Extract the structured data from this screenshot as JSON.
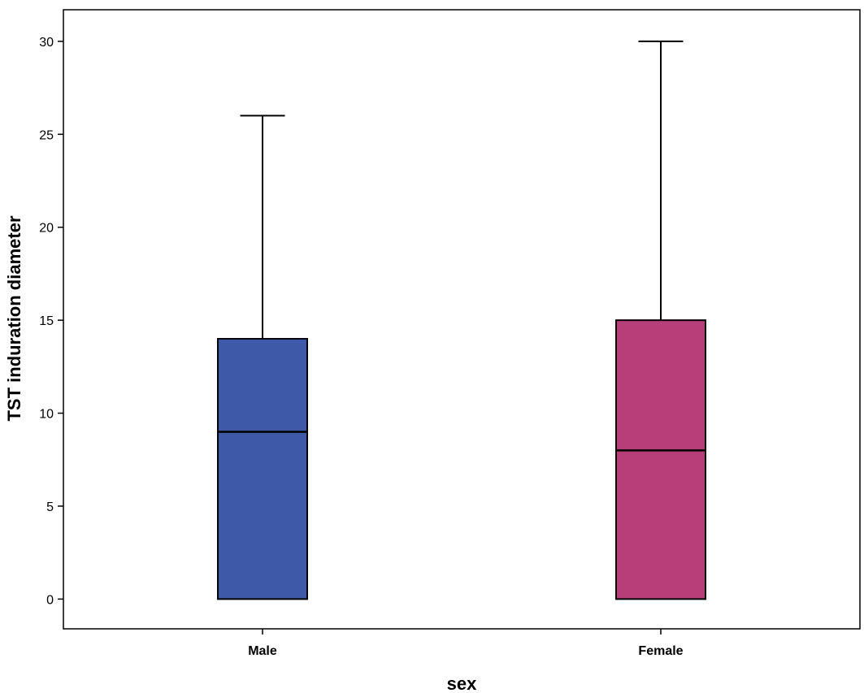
{
  "chart_data": {
    "type": "boxplot",
    "xlabel": "sex",
    "ylabel": "TST induration diameter",
    "ylim": [
      -1.6,
      31.7
    ],
    "yticks": [
      0,
      5,
      10,
      15,
      20,
      25,
      30
    ],
    "grid": false,
    "categories": [
      "Male",
      "Female"
    ],
    "boxes": [
      {
        "category": "Male",
        "min": 0,
        "q1": 0,
        "median": 9,
        "q3": 14,
        "max": 26,
        "color": "#3d59a8"
      },
      {
        "category": "Female",
        "min": 0,
        "q1": 0,
        "median": 8,
        "q3": 15,
        "max": 30,
        "color": "#b83e7a"
      }
    ]
  }
}
